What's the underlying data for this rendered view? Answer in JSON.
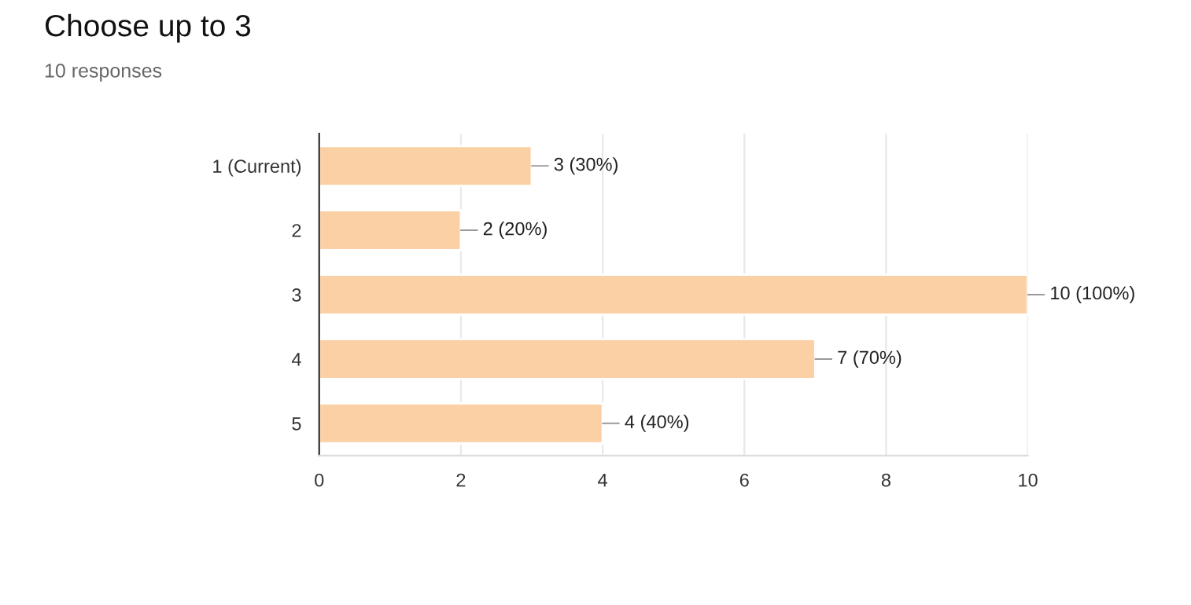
{
  "chart_data": {
    "type": "bar",
    "orientation": "horizontal",
    "title": "Choose up to 3",
    "subtitle": "10 responses",
    "categories": [
      "1 (Current)",
      "2",
      "3",
      "4",
      "5"
    ],
    "values": [
      3,
      2,
      10,
      7,
      4
    ],
    "value_labels": [
      "3 (30%)",
      "2 (20%)",
      "10 (100%)",
      "7 (70%)",
      "4 (40%)"
    ],
    "color": "#fcd0a5",
    "xlim": [
      0,
      10
    ],
    "xticks": [
      0,
      2,
      4,
      6,
      8,
      10
    ],
    "grid": "x",
    "legend": false
  }
}
